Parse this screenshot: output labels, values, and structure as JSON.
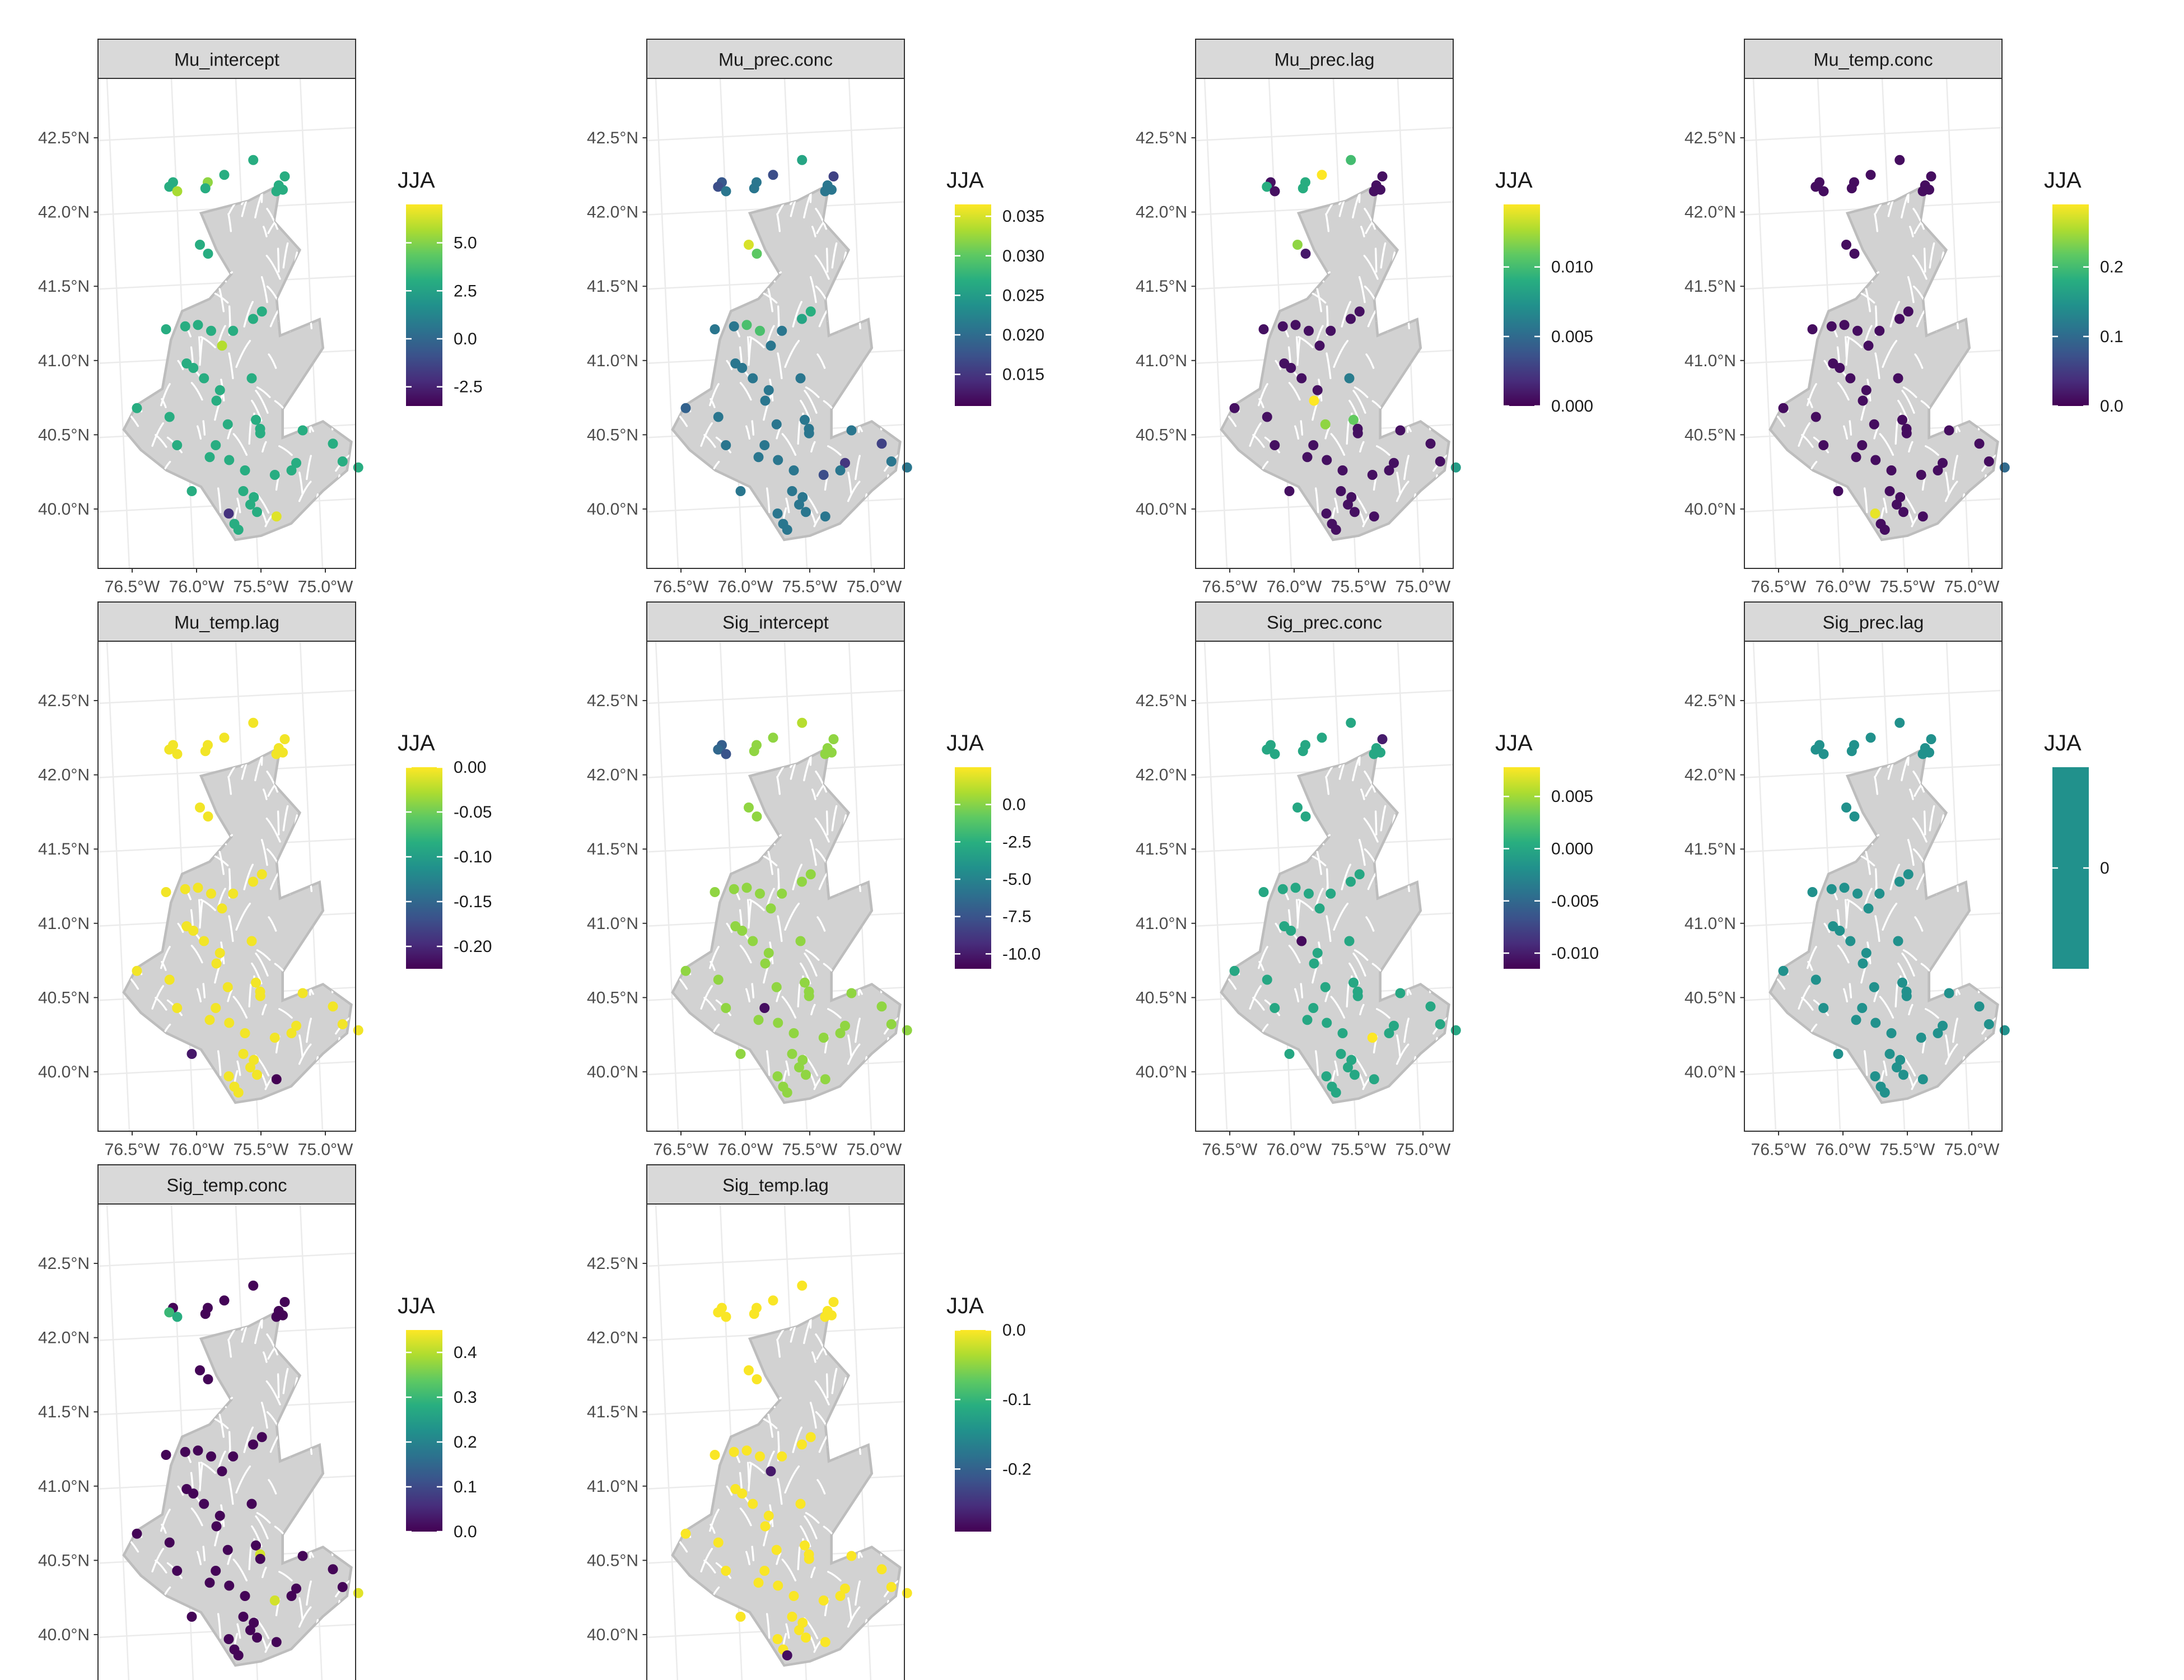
{
  "legend_title": "JJA",
  "axes": {
    "lat_ticks": [
      "42.5°N",
      "42.0°N",
      "41.5°N",
      "41.0°N",
      "40.5°N",
      "40.0°N"
    ],
    "lon_ticks": [
      "76.5°W",
      "76.0°W",
      "75.5°W",
      "75.0°W"
    ]
  },
  "chart_data": {
    "type": "scatter",
    "grid": true,
    "xlim": [
      -76.7,
      -74.7
    ],
    "ylim": [
      39.6,
      42.9
    ],
    "stations": [
      [
        -75.52,
        42.35
      ],
      [
        -75.28,
        42.24
      ],
      [
        -75.33,
        42.18
      ],
      [
        -75.3,
        42.15
      ],
      [
        -75.35,
        42.14
      ],
      [
        -75.75,
        42.25
      ],
      [
        -75.88,
        42.2
      ],
      [
        -75.9,
        42.16
      ],
      [
        -76.15,
        42.2
      ],
      [
        -76.18,
        42.17
      ],
      [
        -76.12,
        42.14
      ],
      [
        -75.96,
        41.78
      ],
      [
        -75.9,
        41.72
      ],
      [
        -75.5,
        41.33
      ],
      [
        -75.57,
        41.28
      ],
      [
        -75.73,
        41.2
      ],
      [
        -75.9,
        41.2
      ],
      [
        -76.0,
        41.24
      ],
      [
        -76.1,
        41.23
      ],
      [
        -76.25,
        41.21
      ],
      [
        -75.82,
        41.1
      ],
      [
        -76.1,
        40.98
      ],
      [
        -76.05,
        40.95
      ],
      [
        -75.97,
        40.88
      ],
      [
        -75.85,
        40.8
      ],
      [
        -75.6,
        40.88
      ],
      [
        -75.88,
        40.73
      ],
      [
        -76.25,
        40.62
      ],
      [
        -76.5,
        40.68
      ],
      [
        -75.8,
        40.57
      ],
      [
        -75.58,
        40.6
      ],
      [
        -75.55,
        40.54
      ],
      [
        -75.55,
        40.51
      ],
      [
        -75.9,
        40.43
      ],
      [
        -76.2,
        40.43
      ],
      [
        -75.22,
        40.53
      ],
      [
        -74.99,
        40.44
      ],
      [
        -74.8,
        40.28
      ],
      [
        -74.92,
        40.32
      ],
      [
        -75.28,
        40.31
      ],
      [
        -75.32,
        40.26
      ],
      [
        -75.45,
        40.23
      ],
      [
        -75.68,
        40.26
      ],
      [
        -75.8,
        40.33
      ],
      [
        -75.95,
        40.35
      ],
      [
        -76.1,
        40.12
      ],
      [
        -75.7,
        40.12
      ],
      [
        -75.62,
        40.08
      ],
      [
        -75.65,
        40.03
      ],
      [
        -75.6,
        39.98
      ],
      [
        -75.82,
        39.97
      ],
      [
        -75.78,
        39.9
      ],
      [
        -75.75,
        39.86
      ],
      [
        -75.45,
        39.95
      ]
    ],
    "panels": [
      {
        "title": "Mu_intercept",
        "scale_range": [
          -3.5,
          7.0
        ],
        "ticks": [
          {
            "v": -2.5,
            "l": "-2.5"
          },
          {
            "v": 0,
            "l": "0.0"
          },
          {
            "v": 2.5,
            "l": "2.5"
          },
          {
            "v": 5,
            "l": "5.0"
          }
        ],
        "base": 3.0,
        "overrides": [
          [
            53,
            6.5
          ],
          [
            50,
            -2.0
          ],
          [
            54,
            2.6
          ],
          [
            6,
            5.2
          ],
          [
            20,
            5.8
          ],
          [
            10,
            5.6
          ]
        ]
      },
      {
        "title": "Mu_prec.conc",
        "scale_range": [
          0.011,
          0.0365
        ],
        "ticks": [
          {
            "v": 0.015,
            "l": "0.015"
          },
          {
            "v": 0.02,
            "l": "0.020"
          },
          {
            "v": 0.025,
            "l": "0.025"
          },
          {
            "v": 0.03,
            "l": "0.030"
          },
          {
            "v": 0.035,
            "l": "0.035"
          }
        ],
        "base": 0.021,
        "overrides": [
          [
            11,
            0.035
          ],
          [
            12,
            0.03
          ],
          [
            13,
            0.027
          ],
          [
            14,
            0.026
          ],
          [
            0,
            0.026
          ],
          [
            16,
            0.029
          ],
          [
            17,
            0.029
          ],
          [
            5,
            0.017
          ],
          [
            8,
            0.018
          ],
          [
            9,
            0.017
          ],
          [
            1,
            0.016
          ],
          [
            36,
            0.016
          ],
          [
            41,
            0.017
          ],
          [
            39,
            0.015
          ],
          [
            28,
            0.019
          ]
        ]
      },
      {
        "title": "Mu_prec.lag",
        "scale_range": [
          0.0,
          0.0145
        ],
        "ticks": [
          {
            "v": 0,
            "l": "0.000"
          },
          {
            "v": 0.005,
            "l": "0.005"
          },
          {
            "v": 0.01,
            "l": "0.010"
          }
        ],
        "base": 0.0006,
        "overrides": [
          [
            5,
            0.0145
          ],
          [
            11,
            0.012
          ],
          [
            26,
            0.0145
          ],
          [
            29,
            0.012
          ],
          [
            25,
            0.006
          ],
          [
            37,
            0.008
          ],
          [
            0,
            0.01
          ],
          [
            6,
            0.009
          ],
          [
            7,
            0.009
          ],
          [
            9,
            0.009
          ],
          [
            12,
            0.001
          ],
          [
            30,
            0.011
          ]
        ]
      },
      {
        "title": "Mu_temp.conc",
        "scale_range": [
          0.0,
          0.29
        ],
        "ticks": [
          {
            "v": 0,
            "l": "0.0"
          },
          {
            "v": 0.1,
            "l": "0.1"
          },
          {
            "v": 0.2,
            "l": "0.2"
          }
        ],
        "base": 0.01,
        "overrides": [
          [
            50,
            0.28
          ],
          [
            37,
            0.1
          ]
        ]
      },
      {
        "title": "Mu_temp.lag",
        "scale_range": [
          -0.225,
          0.0
        ],
        "ticks": [
          {
            "v": -0.2,
            "l": "-0.20"
          },
          {
            "v": -0.15,
            "l": "-0.15"
          },
          {
            "v": -0.1,
            "l": "-0.10"
          },
          {
            "v": -0.05,
            "l": "-0.05"
          },
          {
            "v": 0,
            "l": "0.00"
          }
        ],
        "base": -0.004,
        "overrides": [
          [
            45,
            -0.21
          ],
          [
            53,
            -0.225
          ]
        ]
      },
      {
        "title": "Sig_intercept",
        "scale_range": [
          -11.0,
          2.5
        ],
        "ticks": [
          {
            "v": -10,
            "l": "-10.0"
          },
          {
            "v": -7.5,
            "l": "-7.5"
          },
          {
            "v": -5,
            "l": "-5.0"
          },
          {
            "v": -2.5,
            "l": "-2.5"
          },
          {
            "v": 0,
            "l": "0.0"
          }
        ],
        "base": 0.2,
        "overrides": [
          [
            8,
            -7.0
          ],
          [
            9,
            -6.5
          ],
          [
            10,
            -7.5
          ],
          [
            33,
            -10.5
          ],
          [
            0,
            1.0
          ]
        ]
      },
      {
        "title": "Sig_prec.conc",
        "scale_range": [
          -0.0115,
          0.0078
        ],
        "ticks": [
          {
            "v": -0.01,
            "l": "-0.010"
          },
          {
            "v": -0.005,
            "l": "-0.005"
          },
          {
            "v": 0,
            "l": "0.000"
          },
          {
            "v": 0.005,
            "l": "0.005"
          }
        ],
        "base": 0.0,
        "overrides": [
          [
            1,
            -0.01
          ],
          [
            23,
            -0.011
          ],
          [
            41,
            0.0078
          ]
        ]
      },
      {
        "title": "Sig_prec.lag",
        "scale_range": [
          -1.0,
          1.0
        ],
        "ticks": [
          {
            "v": 0,
            "l": "0"
          }
        ],
        "base": 0.0,
        "overrides": [],
        "constant": true
      },
      {
        "title": "Sig_temp.conc",
        "scale_range": [
          0.0,
          0.45
        ],
        "ticks": [
          {
            "v": 0,
            "l": "0.0"
          },
          {
            "v": 0.1,
            "l": "0.1"
          },
          {
            "v": 0.2,
            "l": "0.2"
          },
          {
            "v": 0.3,
            "l": "0.3"
          },
          {
            "v": 0.4,
            "l": "0.4"
          }
        ],
        "base": 0.005,
        "overrides": [
          [
            9,
            0.3
          ],
          [
            10,
            0.28
          ],
          [
            31,
            0.42
          ],
          [
            41,
            0.42
          ],
          [
            37,
            0.43
          ],
          [
            5,
            0.005
          ]
        ]
      },
      {
        "title": "Sig_temp.lag",
        "scale_range": [
          -0.29,
          0.0
        ],
        "ticks": [
          {
            "v": -0.2,
            "l": "-0.2"
          },
          {
            "v": -0.1,
            "l": "-0.1"
          },
          {
            "v": 0,
            "l": "0.0"
          }
        ],
        "base": -0.002,
        "overrides": [
          [
            20,
            -0.27
          ],
          [
            52,
            -0.28
          ]
        ]
      }
    ]
  }
}
